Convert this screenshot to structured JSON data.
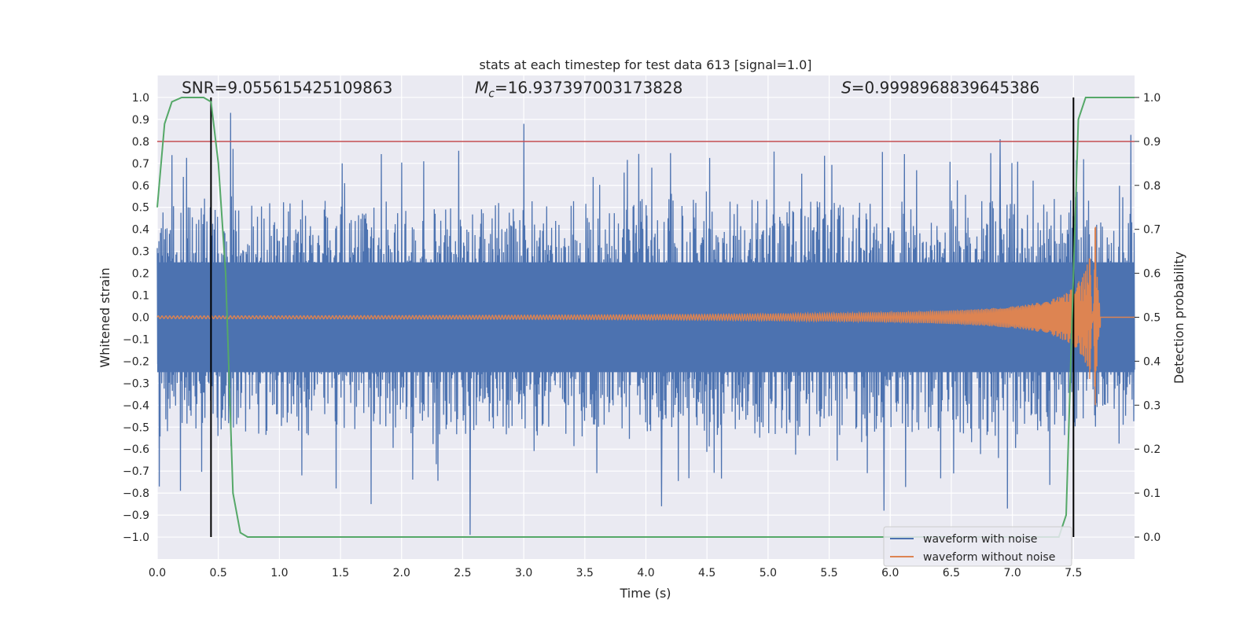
{
  "colors": {
    "background": "#ffffff",
    "axes_bg": "#eaeaf2",
    "grid": "#ffffff",
    "noisy": "#4c72b0",
    "clean": "#dd8452",
    "prob": "#55a868",
    "threshold": "#c44e52",
    "marker": "#000000"
  },
  "chart_data": {
    "type": "line",
    "title": "stats at each timestep for test data 613 [signal=1.0]",
    "xlabel": "Time (s)",
    "ylabel": "Whitened strain",
    "ylabel_right": "Detection probability",
    "xlim": [
      0.0,
      8.0
    ],
    "ylim": [
      -1.1,
      1.1
    ],
    "ylim_right": [
      -0.05,
      1.05
    ],
    "xticks": [
      "0.0",
      "0.5",
      "1.0",
      "1.5",
      "2.0",
      "2.5",
      "3.0",
      "3.5",
      "4.0",
      "4.5",
      "5.0",
      "5.5",
      "6.0",
      "6.5",
      "7.0",
      "7.5"
    ],
    "xtick_values": [
      0.0,
      0.5,
      1.0,
      1.5,
      2.0,
      2.5,
      3.0,
      3.5,
      4.0,
      4.5,
      5.0,
      5.5,
      6.0,
      6.5,
      7.0,
      7.5
    ],
    "yticks": [
      "1.0",
      "0.9",
      "0.8",
      "0.7",
      "0.6",
      "0.5",
      "0.4",
      "0.3",
      "0.2",
      "0.1",
      "0.0",
      "−0.1",
      "−0.2",
      "−0.3",
      "−0.4",
      "−0.5",
      "−0.6",
      "−0.7",
      "−0.8",
      "−0.9",
      "−1.0"
    ],
    "ytick_values": [
      1.0,
      0.9,
      0.8,
      0.7,
      0.6,
      0.5,
      0.4,
      0.3,
      0.2,
      0.1,
      0.0,
      -0.1,
      -0.2,
      -0.3,
      -0.4,
      -0.5,
      -0.6,
      -0.7,
      -0.8,
      -0.9,
      -1.0
    ],
    "yticks_right": [
      "1.0",
      "0.9",
      "0.8",
      "0.7",
      "0.6",
      "0.5",
      "0.4",
      "0.3",
      "0.2",
      "0.1",
      "0.0"
    ],
    "ytick_right_values": [
      1.0,
      0.9,
      0.8,
      0.7,
      0.6,
      0.5,
      0.4,
      0.3,
      0.2,
      0.1,
      0.0
    ],
    "annotations": {
      "snr": "SNR=9.055615425109863",
      "mc_symbol": "M",
      "mc_sub": "c",
      "mc_value": "=16.937397003173828",
      "s_symbol": "S",
      "s_value": "=0.9998968839645386"
    },
    "annotation_positions_data": {
      "snr_x": 0.2,
      "mc_x": 2.6,
      "s_x": 5.6,
      "y": 1.02
    },
    "legend": {
      "location": "lower right",
      "entries": [
        "waveform with noise",
        "waveform without noise"
      ]
    },
    "threshold_line": {
      "y": 0.9,
      "axis": "right"
    },
    "vertical_markers": [
      0.44,
      7.5
    ],
    "noisy_waveform": {
      "name": "waveform with noise",
      "t_range": [
        0.0,
        8.0
      ],
      "core_amplitude": 0.25,
      "typical_peak_amplitude": 0.55,
      "notable_peaks": [
        {
          "t": 0.6,
          "v": 0.93
        },
        {
          "t": 3.0,
          "v": 0.88
        },
        {
          "t": 2.56,
          "v": -0.99
        },
        {
          "t": 5.95,
          "v": -0.88
        },
        {
          "t": 6.9,
          "v": 0.81
        },
        {
          "t": 6.96,
          "v": -0.87
        },
        {
          "t": 7.97,
          "v": 0.83
        },
        {
          "t": 0.19,
          "v": -0.79
        },
        {
          "t": 1.75,
          "v": -0.85
        },
        {
          "t": 4.13,
          "v": -0.86
        }
      ]
    },
    "clean_waveform": {
      "name": "waveform without noise",
      "t_range": [
        0.0,
        7.7
      ],
      "amplitude_start": 0.006,
      "peak_t": 7.68,
      "peak_positive": 0.48,
      "peak_negative": -0.4,
      "ringdown_end": 7.72
    },
    "probability_series": {
      "name": "detection probability",
      "axis": "right",
      "x": [
        0.0,
        0.06,
        0.12,
        0.2,
        0.3,
        0.38,
        0.44,
        0.5,
        0.56,
        0.62,
        0.68,
        0.74,
        7.38,
        7.44,
        7.5,
        7.54,
        7.6,
        7.66,
        8.0
      ],
      "y": [
        0.75,
        0.94,
        0.99,
        1.0,
        1.0,
        1.0,
        0.99,
        0.85,
        0.6,
        0.1,
        0.01,
        0.0,
        0.0,
        0.05,
        0.6,
        0.95,
        1.0,
        1.0,
        1.0
      ]
    }
  }
}
